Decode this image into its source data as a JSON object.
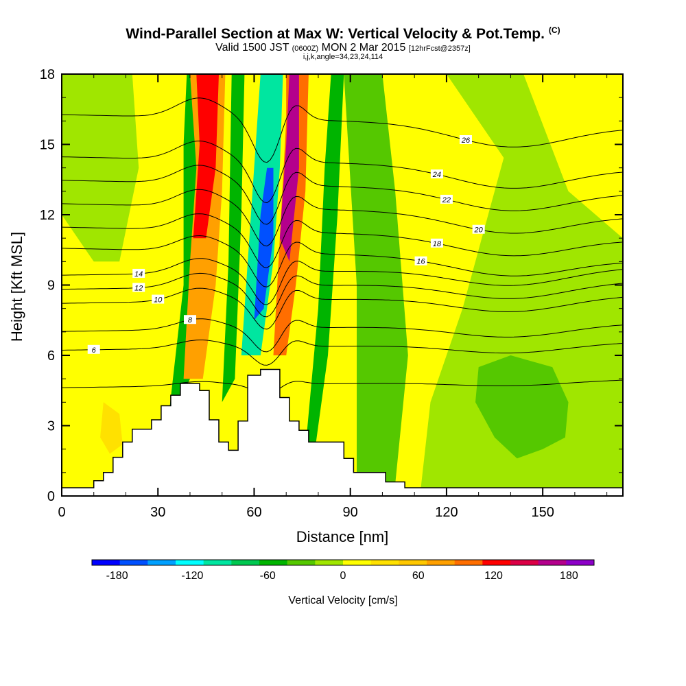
{
  "title": {
    "main": "Wind-Parallel Section at Max W: Vertical Velocity & Pot.Temp.",
    "copyright": "(C)",
    "valid_prefix": "Valid 1500 JST",
    "valid_utc": "(0600Z)",
    "valid_date": "MON 2 Mar 2015",
    "forecast": "[12hrFcst@2357z]",
    "params": "i,j,k,angle=34,23,24,114"
  },
  "chart_data": {
    "type": "contour-section",
    "title": "Wind-Parallel Section at Max W: Vertical Velocity & Pot.Temp.",
    "xlabel": "Distance [nm]",
    "ylabel": "Height [Kft MSL]",
    "xlim": [
      0,
      175
    ],
    "ylim": [
      0,
      18
    ],
    "x_ticks": [
      "0",
      "30",
      "60",
      "90",
      "120",
      "150"
    ],
    "y_ticks": [
      "0",
      "3",
      "6",
      "9",
      "12",
      "15",
      "18"
    ],
    "colorbar": {
      "label": "Vertical Velocity [cm/s]",
      "ticks": [
        "-180",
        "-120",
        "-60",
        "0",
        "60",
        "120",
        "180"
      ],
      "range": [
        -200,
        200
      ],
      "colors": [
        "#0000ff",
        "#0050ff",
        "#00a0ff",
        "#00ffff",
        "#00e6a0",
        "#00c850",
        "#00b400",
        "#55c800",
        "#a0e600",
        "#ffff00",
        "#ffe100",
        "#ffc800",
        "#ffa000",
        "#ff6e00",
        "#ff0000",
        "#dc0046",
        "#b4008c",
        "#8c00c8"
      ]
    },
    "terrain": [
      [
        0,
        0.35
      ],
      [
        10,
        0.35
      ],
      [
        10,
        0.65
      ],
      [
        13,
        0.65
      ],
      [
        13,
        1.0
      ],
      [
        16,
        1.0
      ],
      [
        16,
        1.65
      ],
      [
        19,
        1.65
      ],
      [
        19,
        2.3
      ],
      [
        22,
        2.3
      ],
      [
        22,
        2.85
      ],
      [
        28,
        2.85
      ],
      [
        28,
        3.25
      ],
      [
        31,
        3.25
      ],
      [
        31,
        3.85
      ],
      [
        34,
        3.85
      ],
      [
        34,
        4.3
      ],
      [
        37,
        4.3
      ],
      [
        37,
        4.8
      ],
      [
        43,
        4.8
      ],
      [
        43,
        4.5
      ],
      [
        46,
        4.5
      ],
      [
        46,
        3.25
      ],
      [
        49,
        3.25
      ],
      [
        49,
        2.3
      ],
      [
        52,
        2.3
      ],
      [
        52,
        1.95
      ],
      [
        55,
        1.95
      ],
      [
        55,
        3.2
      ],
      [
        58,
        3.2
      ],
      [
        58,
        5.15
      ],
      [
        62,
        5.15
      ],
      [
        62,
        5.4
      ],
      [
        68,
        5.4
      ],
      [
        68,
        4.2
      ],
      [
        71,
        4.2
      ],
      [
        71,
        3.2
      ],
      [
        74,
        3.2
      ],
      [
        74,
        2.8
      ],
      [
        77,
        2.8
      ],
      [
        77,
        2.3
      ],
      [
        88,
        2.3
      ],
      [
        88,
        1.6
      ],
      [
        91,
        1.6
      ],
      [
        91,
        1.0
      ],
      [
        101,
        1.0
      ],
      [
        101,
        0.6
      ],
      [
        107,
        0.6
      ],
      [
        107,
        0.35
      ],
      [
        175,
        0.35
      ]
    ],
    "w_regions": [
      {
        "value": 15,
        "poly": [
          [
            0,
            0.35
          ],
          [
            175,
            0.35
          ],
          [
            175,
            18
          ],
          [
            0,
            18
          ]
        ]
      },
      {
        "value": 20,
        "poly": [
          [
            0,
            6
          ],
          [
            30,
            7
          ],
          [
            60,
            8
          ],
          [
            85,
            6
          ],
          [
            110,
            3
          ],
          [
            130,
            0.35
          ],
          [
            0,
            0.35
          ]
        ]
      },
      {
        "value": -15,
        "poly": [
          [
            112,
            0.35
          ],
          [
            175,
            0.35
          ],
          [
            175,
            18
          ],
          [
            145,
            18
          ],
          [
            135,
            13
          ],
          [
            125,
            8
          ],
          [
            115,
            4
          ]
        ]
      },
      {
        "value": -35,
        "poly": [
          [
            92,
            0.5
          ],
          [
            104,
            0.5
          ],
          [
            108,
            6
          ],
          [
            104,
            13
          ],
          [
            100,
            18
          ],
          [
            88,
            18
          ],
          [
            92,
            9
          ]
        ]
      },
      {
        "value": -15,
        "poly": [
          [
            120,
            18
          ],
          [
            175,
            18
          ],
          [
            175,
            9
          ],
          [
            150,
            11
          ],
          [
            140,
            14
          ]
        ]
      },
      {
        "value": 5,
        "poly": [
          [
            144,
            18
          ],
          [
            175,
            18
          ],
          [
            175,
            11
          ],
          [
            158,
            13
          ]
        ]
      },
      {
        "value": -15,
        "poly": [
          [
            0,
            18
          ],
          [
            22,
            18
          ],
          [
            24,
            14
          ],
          [
            18,
            10
          ],
          [
            10,
            10
          ],
          [
            0,
            12
          ]
        ]
      },
      {
        "value": -40,
        "poly": [
          [
            130,
            5.5
          ],
          [
            140,
            6
          ],
          [
            153,
            5.5
          ],
          [
            158,
            4
          ],
          [
            157,
            2.5
          ],
          [
            150,
            2
          ],
          [
            142,
            1.6
          ],
          [
            135,
            2.5
          ],
          [
            129,
            4
          ]
        ]
      },
      {
        "value": 35,
        "poly": [
          [
            13,
            4
          ],
          [
            18,
            3.5
          ],
          [
            19,
            2.2
          ],
          [
            15,
            1.8
          ],
          [
            12,
            2.5
          ]
        ]
      },
      {
        "value": -45,
        "poly": [
          [
            33,
            3
          ],
          [
            38,
            9
          ],
          [
            38,
            15
          ],
          [
            39,
            18
          ],
          [
            47,
            18
          ],
          [
            46,
            13
          ],
          [
            44,
            8
          ],
          [
            40,
            5
          ]
        ]
      },
      {
        "value": 80,
        "poly": [
          [
            38,
            5
          ],
          [
            40,
            10
          ],
          [
            42,
            14
          ],
          [
            40,
            18
          ],
          [
            51,
            18
          ],
          [
            50,
            13
          ],
          [
            48,
            9
          ],
          [
            44,
            5
          ]
        ]
      },
      {
        "value": 125,
        "poly": [
          [
            41,
            11
          ],
          [
            43,
            15
          ],
          [
            42,
            18
          ],
          [
            49,
            18
          ],
          [
            48,
            14
          ],
          [
            45,
            11
          ]
        ]
      },
      {
        "value": -50,
        "poly": [
          [
            50,
            4
          ],
          [
            52,
            10
          ],
          [
            53,
            18
          ],
          [
            57,
            18
          ],
          [
            56,
            12
          ],
          [
            54,
            5
          ]
        ]
      },
      {
        "value": -110,
        "poly": [
          [
            56,
            6
          ],
          [
            59,
            12
          ],
          [
            61,
            16
          ],
          [
            62,
            18
          ],
          [
            69,
            18
          ],
          [
            68,
            14
          ],
          [
            66,
            10
          ],
          [
            62,
            6
          ]
        ]
      },
      {
        "value": -170,
        "poly": [
          [
            60,
            7.5
          ],
          [
            62,
            12
          ],
          [
            64,
            14
          ],
          [
            66,
            14
          ],
          [
            66,
            11
          ],
          [
            63,
            8
          ]
        ]
      },
      {
        "value": 100,
        "poly": [
          [
            66,
            6
          ],
          [
            68,
            11
          ],
          [
            70,
            16
          ],
          [
            70,
            18
          ],
          [
            77,
            18
          ],
          [
            76,
            13
          ],
          [
            73,
            9
          ],
          [
            70,
            6
          ]
        ]
      },
      {
        "value": 170,
        "poly": [
          [
            68,
            11
          ],
          [
            70,
            15
          ],
          [
            71,
            18
          ],
          [
            74,
            18
          ],
          [
            74,
            14
          ],
          [
            71,
            10
          ]
        ]
      },
      {
        "value": -45,
        "poly": [
          [
            76,
            2
          ],
          [
            80,
            8
          ],
          [
            82,
            14
          ],
          [
            84,
            18
          ],
          [
            88,
            18
          ],
          [
            86,
            12
          ],
          [
            83,
            6
          ],
          [
            79,
            2
          ]
        ]
      }
    ],
    "theta_lines": [
      {
        "label": "",
        "y0": 4.8,
        "amp": 0.5,
        "labx": null
      },
      {
        "label": "6",
        "y0": 6.4,
        "amp": 1.0,
        "labx": 10
      },
      {
        "label": "8",
        "y0": 7.2,
        "amp": 1.3,
        "labx": 40
      },
      {
        "label": "10",
        "y0": 8.4,
        "amp": 1.6,
        "labx": 30
      },
      {
        "label": "12",
        "y0": 9.0,
        "amp": 1.7,
        "labx": 24
      },
      {
        "label": "14",
        "y0": 9.6,
        "amp": 1.8,
        "labx": 24
      },
      {
        "label": "16",
        "y0": 10.3,
        "amp": 1.9,
        "labx": 112
      },
      {
        "label": "18",
        "y0": 11.2,
        "amp": 2.0,
        "labx": 117
      },
      {
        "label": "20",
        "y0": 12.2,
        "amp": 2.1,
        "labx": 130
      },
      {
        "label": "22",
        "y0": 13.2,
        "amp": 2.2,
        "labx": 120
      },
      {
        "label": "24",
        "y0": 14.2,
        "amp": 2.3,
        "labx": 117
      },
      {
        "label": "26",
        "y0": 16.0,
        "amp": 2.4,
        "labx": 126
      }
    ]
  }
}
